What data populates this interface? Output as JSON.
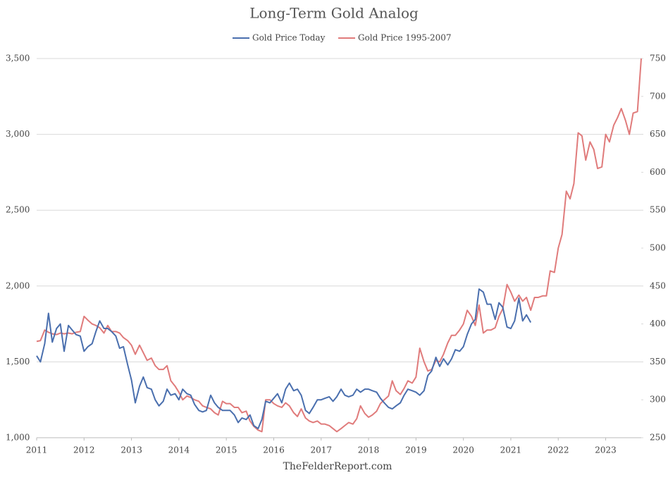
{
  "chart_data": {
    "type": "line",
    "title": "Long-Term Gold Analog",
    "footer": "TheFelderReport.com",
    "grid": true,
    "legend": "top",
    "xlim": [
      2011,
      2023.75
    ],
    "xticks": [
      2011,
      2012,
      2013,
      2014,
      2015,
      2016,
      2017,
      2018,
      2019,
      2020,
      2021,
      2022,
      2023
    ],
    "ylim": [
      1000,
      3500
    ],
    "yticks": [
      {
        "value": 1000,
        "label": "1,000"
      },
      {
        "value": 1500,
        "label": "1,500"
      },
      {
        "value": 2000,
        "label": "2,000"
      },
      {
        "value": 2500,
        "label": "2,500"
      },
      {
        "value": 3000,
        "label": "3,000"
      },
      {
        "value": 3500,
        "label": "3,500"
      }
    ],
    "y2lim": [
      250,
      750
    ],
    "y2ticks": [
      250,
      300,
      350,
      400,
      450,
      500,
      550,
      600,
      650,
      700,
      750
    ],
    "x": [
      2011.0,
      2011.08,
      2011.17,
      2011.25,
      2011.33,
      2011.42,
      2011.5,
      2011.58,
      2011.67,
      2011.75,
      2011.83,
      2011.92,
      2012.0,
      2012.08,
      2012.17,
      2012.25,
      2012.33,
      2012.42,
      2012.5,
      2012.58,
      2012.67,
      2012.75,
      2012.83,
      2012.92,
      2013.0,
      2013.08,
      2013.17,
      2013.25,
      2013.33,
      2013.42,
      2013.5,
      2013.58,
      2013.67,
      2013.75,
      2013.83,
      2013.92,
      2014.0,
      2014.08,
      2014.17,
      2014.25,
      2014.33,
      2014.42,
      2014.5,
      2014.58,
      2014.67,
      2014.75,
      2014.83,
      2014.92,
      2015.0,
      2015.08,
      2015.17,
      2015.25,
      2015.33,
      2015.42,
      2015.5,
      2015.58,
      2015.67,
      2015.75,
      2015.83,
      2015.92,
      2016.0,
      2016.08,
      2016.17,
      2016.25,
      2016.33,
      2016.42,
      2016.5,
      2016.58,
      2016.67,
      2016.75,
      2016.83,
      2016.92,
      2017.0,
      2017.08,
      2017.17,
      2017.25,
      2017.33,
      2017.42,
      2017.5,
      2017.58,
      2017.67,
      2017.75,
      2017.83,
      2017.92,
      2018.0,
      2018.08,
      2018.17,
      2018.25,
      2018.33,
      2018.42,
      2018.5,
      2018.58,
      2018.67,
      2018.75,
      2018.83,
      2018.92,
      2019.0,
      2019.08,
      2019.17,
      2019.25,
      2019.33,
      2019.42,
      2019.5,
      2019.58,
      2019.67,
      2019.75,
      2019.83,
      2019.92,
      2020.0,
      2020.08,
      2020.17,
      2020.25,
      2020.33,
      2020.42,
      2020.5,
      2020.58,
      2020.67,
      2020.75,
      2020.83,
      2020.92,
      2021.0,
      2021.08,
      2021.17,
      2021.25,
      2021.33,
      2021.42,
      2021.5,
      2021.58,
      2021.67,
      2021.75,
      2021.83,
      2021.92,
      2022.0,
      2022.08,
      2022.17,
      2022.25,
      2022.33,
      2022.42,
      2022.5,
      2022.58,
      2022.67,
      2022.75,
      2022.83,
      2022.92,
      2023.0,
      2023.08,
      2023.17,
      2023.25,
      2023.33,
      2023.42,
      2023.5,
      2023.58,
      2023.67,
      2023.75
    ],
    "series": [
      {
        "name": "Gold Price Today",
        "color": "#4a6fae",
        "axis": "y",
        "values": [
          1540,
          1500,
          1620,
          1820,
          1630,
          1720,
          1750,
          1570,
          1740,
          1710,
          1680,
          1670,
          1570,
          1600,
          1620,
          1700,
          1770,
          1720,
          1720,
          1700,
          1670,
          1590,
          1600,
          1480,
          1380,
          1230,
          1340,
          1400,
          1330,
          1320,
          1250,
          1210,
          1240,
          1320,
          1280,
          1290,
          1250,
          1320,
          1290,
          1280,
          1220,
          1180,
          1170,
          1180,
          1280,
          1230,
          1200,
          1180,
          1180,
          1180,
          1150,
          1100,
          1130,
          1120,
          1150,
          1080,
          1060,
          1120,
          1240,
          1230,
          1260,
          1290,
          1230,
          1320,
          1360,
          1310,
          1320,
          1280,
          1180,
          1160,
          1200,
          1250,
          1250,
          1260,
          1270,
          1240,
          1270,
          1320,
          1280,
          1270,
          1280,
          1320,
          1300,
          1320,
          1320,
          1310,
          1300,
          1260,
          1230,
          1200,
          1190,
          1210,
          1230,
          1280,
          1320,
          1310,
          1300,
          1280,
          1310,
          1410,
          1440,
          1530,
          1470,
          1520,
          1480,
          1520,
          1580,
          1570,
          1600,
          1680,
          1750,
          1780,
          1980,
          1960,
          1880,
          1880,
          1780,
          1890,
          1860,
          1730,
          1720,
          1770,
          1920,
          1770,
          1810,
          1760,
          null,
          null,
          null,
          null,
          null,
          null,
          null,
          null,
          null,
          null,
          null,
          null,
          null,
          null,
          null,
          null,
          null,
          null,
          null,
          null,
          null,
          null,
          null,
          null,
          null,
          null,
          null,
          null
        ]
      },
      {
        "name": "Gold Price 1995-2007",
        "color": "#e07b7b",
        "axis": "y2",
        "values": [
          377,
          378,
          392,
          389,
          387,
          386,
          388,
          387,
          388,
          387,
          389,
          390,
          410,
          405,
          400,
          398,
          395,
          388,
          398,
          390,
          390,
          388,
          382,
          378,
          372,
          360,
          372,
          362,
          352,
          355,
          345,
          340,
          340,
          345,
          325,
          318,
          310,
          300,
          305,
          303,
          300,
          298,
          292,
          290,
          288,
          283,
          280,
          298,
          295,
          295,
          290,
          290,
          283,
          285,
          272,
          265,
          260,
          258,
          300,
          300,
          295,
          292,
          290,
          296,
          292,
          283,
          278,
          288,
          276,
          272,
          270,
          272,
          268,
          268,
          266,
          262,
          258,
          262,
          266,
          270,
          268,
          275,
          292,
          282,
          277,
          280,
          285,
          295,
          300,
          305,
          325,
          312,
          307,
          315,
          325,
          322,
          330,
          368,
          350,
          338,
          340,
          352,
          350,
          360,
          375,
          385,
          385,
          392,
          400,
          418,
          410,
          398,
          425,
          388,
          392,
          392,
          395,
          410,
          420,
          452,
          442,
          430,
          438,
          430,
          435,
          418,
          435,
          435,
          437,
          437,
          470,
          468,
          500,
          518,
          575,
          565,
          585,
          652,
          648,
          616,
          640,
          630,
          605,
          607,
          650,
          640,
          662,
          672,
          684,
          668,
          650,
          678,
          680,
          750
        ]
      }
    ]
  }
}
